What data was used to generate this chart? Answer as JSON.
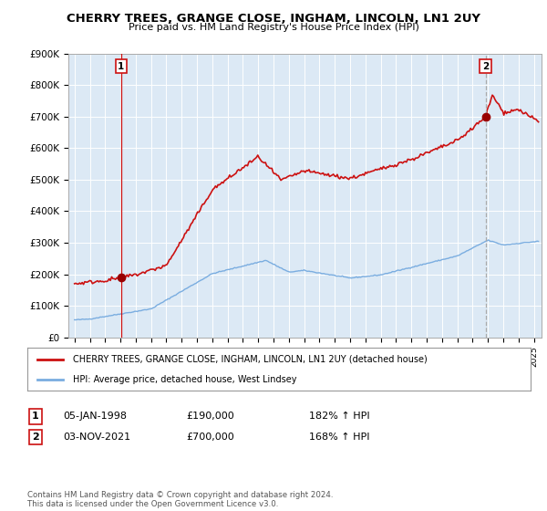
{
  "title": "CHERRY TREES, GRANGE CLOSE, INGHAM, LINCOLN, LN1 2UY",
  "subtitle": "Price paid vs. HM Land Registry's House Price Index (HPI)",
  "ylim": [
    0,
    900000
  ],
  "yticks": [
    0,
    100000,
    200000,
    300000,
    400000,
    500000,
    600000,
    700000,
    800000,
    900000
  ],
  "ytick_labels": [
    "£0",
    "£100K",
    "£200K",
    "£300K",
    "£400K",
    "£500K",
    "£600K",
    "£700K",
    "£800K",
    "£900K"
  ],
  "sale1_date": 1998.04,
  "sale1_price": 190000,
  "sale1_label": "1",
  "sale2_date": 2021.84,
  "sale2_price": 700000,
  "sale2_label": "2",
  "hpi_color": "#7aade0",
  "price_color": "#cc1111",
  "marker_color": "#990000",
  "vline1_color": "#cc1111",
  "vline2_color": "#aaaaaa",
  "background_color": "#ffffff",
  "plot_bg_color": "#dce9f5",
  "grid_color": "#ffffff",
  "legend_label_price": "CHERRY TREES, GRANGE CLOSE, INGHAM, LINCOLN, LN1 2UY (detached house)",
  "legend_label_hpi": "HPI: Average price, detached house, West Lindsey",
  "footer": "Contains HM Land Registry data © Crown copyright and database right 2024.\nThis data is licensed under the Open Government Licence v3.0.",
  "table_rows": [
    [
      "1",
      "05-JAN-1998",
      "£190,000",
      "182% ↑ HPI"
    ],
    [
      "2",
      "03-NOV-2021",
      "£700,000",
      "168% ↑ HPI"
    ]
  ]
}
